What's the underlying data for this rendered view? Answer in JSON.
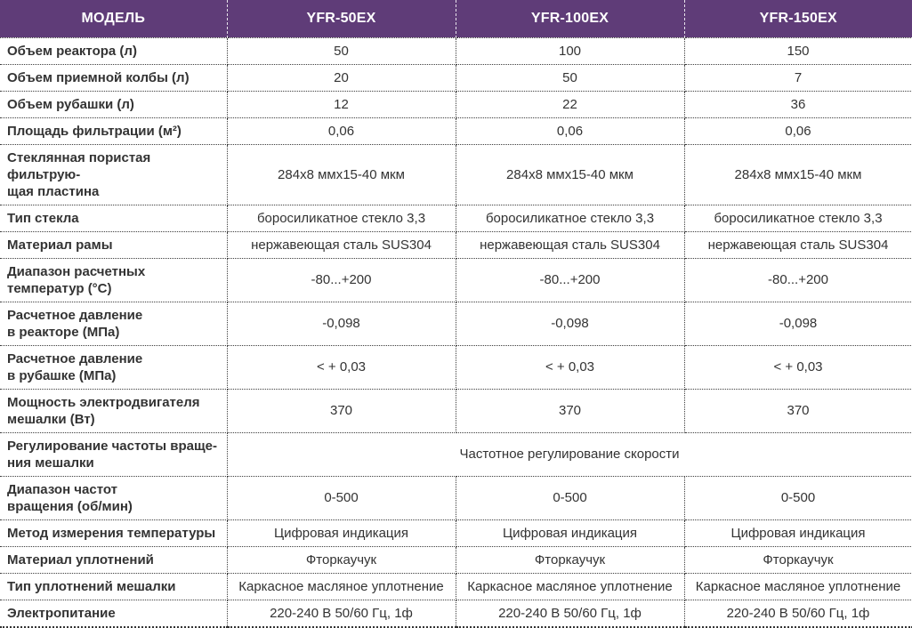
{
  "colors": {
    "header_bg": "#5f3c78",
    "header_text": "#ffffff",
    "border_dotted": "#3c3c3c",
    "label_text": "#3a3a3a",
    "value_text": "#333333"
  },
  "table": {
    "header": {
      "model_label": "МОДЕЛЬ",
      "columns": [
        "YFR-50EX",
        "YFR-100EX",
        "YFR-150EX"
      ]
    },
    "rows": [
      {
        "label": "Объем реактора (л)",
        "values": [
          "50",
          "100",
          "150"
        ]
      },
      {
        "label": "Объем приемной колбы (л)",
        "values": [
          "20",
          "50",
          "7"
        ]
      },
      {
        "label": "Объем рубашки (л)",
        "values": [
          "12",
          "22",
          "36"
        ]
      },
      {
        "label": "Площадь фильтрации (м²)",
        "values": [
          "0,06",
          "0,06",
          "0,06"
        ]
      },
      {
        "label": "Стеклянная пористая фильтрую-\nщая пластина",
        "values": [
          "284x8 ммx15-40 мкм",
          "284x8 ммx15-40 мкм",
          "284x8 ммx15-40 мкм"
        ]
      },
      {
        "label": "Тип стекла",
        "values": [
          "боросиликатное стекло 3,3",
          "боросиликатное стекло 3,3",
          "боросиликатное стекло 3,3"
        ]
      },
      {
        "label": "Материал рамы",
        "values": [
          "нержавеющая сталь SUS304",
          "нержавеющая сталь SUS304",
          "нержавеющая сталь SUS304"
        ]
      },
      {
        "label": "Диапазон расчетных\nтемператур (°C)",
        "values": [
          "-80...+200",
          "-80...+200",
          "-80...+200"
        ]
      },
      {
        "label": "Расчетное давление\nв реакторе (МПа)",
        "values": [
          "-0,098",
          "-0,098",
          "-0,098"
        ]
      },
      {
        "label": "Расчетное давление\nв рубашке (МПа)",
        "values": [
          "< + 0,03",
          "< + 0,03",
          "< + 0,03"
        ]
      },
      {
        "label": "Мощность электродвигателя\nмешалки (Вт)",
        "values": [
          "370",
          "370",
          "370"
        ]
      },
      {
        "label": "Регулирование частоты враще-\nния мешалки",
        "merged": true,
        "merged_value": "Частотное регулирование скорости"
      },
      {
        "label": "Диапазон частот\nвращения (об/мин)",
        "values": [
          "0-500",
          "0-500",
          "0-500"
        ]
      },
      {
        "label": "Метод измерения температуры",
        "values": [
          "Цифровая индикация",
          "Цифровая индикация",
          "Цифровая индикация"
        ]
      },
      {
        "label": "Материал уплотнений",
        "values": [
          "Фторкаучук",
          "Фторкаучук",
          "Фторкаучук"
        ]
      },
      {
        "label": "Тип уплотнений мешалки",
        "values": [
          "Каркасное масляное уплотнение",
          "Каркасное масляное уплотнение",
          "Каркасное масляное уплотнение"
        ]
      },
      {
        "label": "Электропитание",
        "values": [
          "220-240 В 50/60 Гц, 1ф",
          "220-240 В 50/60 Гц, 1ф",
          "220-240 В 50/60 Гц, 1ф"
        ]
      }
    ]
  }
}
